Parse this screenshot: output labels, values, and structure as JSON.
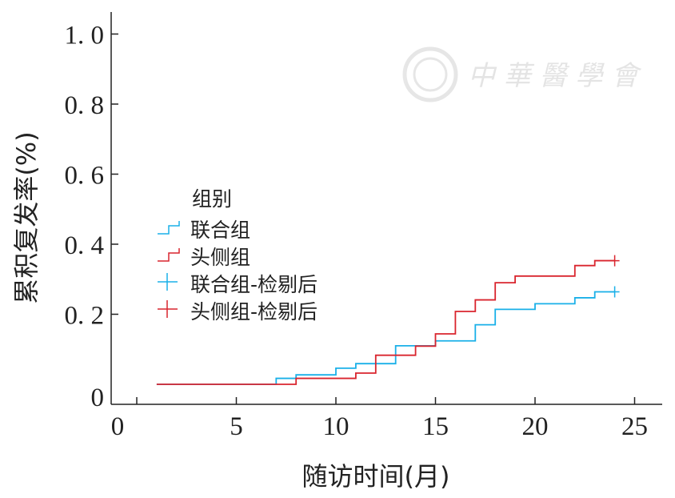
{
  "chart_data": {
    "type": "line",
    "step": true,
    "title": "",
    "xlabel": "随访时间(月)",
    "ylabel": "累积复发率(%)",
    "xlim": [
      0,
      26
    ],
    "ylim": [
      0,
      1.0
    ],
    "xticks": [
      0,
      5,
      10,
      15,
      20,
      25
    ],
    "xtick_labels": [
      "0",
      "5",
      "10",
      "15",
      "20",
      "25"
    ],
    "yticks": [
      0,
      0.2,
      0.4,
      0.6,
      0.8,
      1.0
    ],
    "ytick_labels": [
      "0",
      "0. 2",
      "0. 4",
      "0. 6",
      "0. 8",
      "1. 0"
    ],
    "grid": false,
    "legend": {
      "title": "组别",
      "placement": "center-left",
      "entries": [
        "联合组",
        "头侧组",
        "联合组-检剔后",
        "头侧组-检剔后"
      ]
    },
    "series": [
      {
        "name": "联合组",
        "color": "#1ab0e8",
        "x": [
          1,
          7,
          8,
          10,
          11,
          13,
          15,
          17,
          18,
          20,
          22,
          23,
          24
        ],
        "y": [
          0,
          0.017,
          0.027,
          0.046,
          0.059,
          0.11,
          0.124,
          0.17,
          0.214,
          0.23,
          0.247,
          0.264,
          0.264
        ],
        "censored_x": [
          24
        ]
      },
      {
        "name": "头侧组",
        "color": "#d9252e",
        "x": [
          1,
          8,
          11,
          12,
          14,
          15,
          16,
          17,
          18,
          19,
          22,
          23,
          24
        ],
        "y": [
          0,
          0.017,
          0.032,
          0.083,
          0.109,
          0.144,
          0.208,
          0.241,
          0.29,
          0.309,
          0.339,
          0.353,
          0.353
        ],
        "censored_x": [
          24
        ]
      }
    ]
  },
  "watermark": "中华医学会"
}
